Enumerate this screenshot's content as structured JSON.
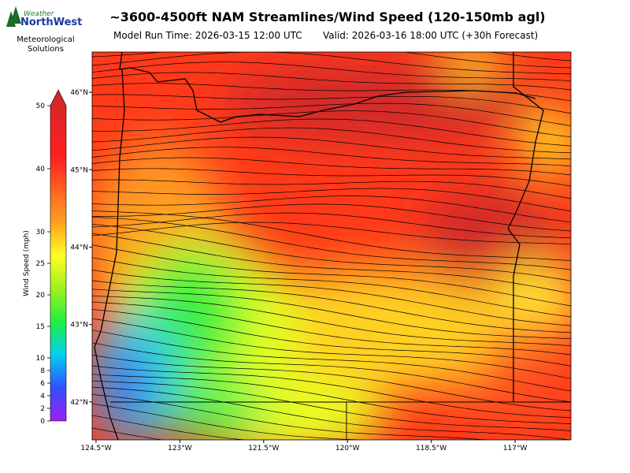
{
  "header": {
    "title": "~3600-4500ft NAM Streamlines/Wind Speed (120-150mb agl)",
    "model_run": "Model Run Time: 2026-03-15 12:00 UTC",
    "valid": "Valid: 2026-03-16 18:00 UTC  (+30h Forecast)"
  },
  "logo": {
    "top": "Weather",
    "name": "NorthWest",
    "line1": "Meteorological",
    "line2": "Solutions"
  },
  "colorbar": {
    "label": "Wind Speed (mph)",
    "lim": [
      0,
      50
    ],
    "ticks": [
      0,
      2,
      4,
      6,
      8,
      10,
      15,
      20,
      25,
      30,
      40,
      50
    ]
  },
  "map": {
    "xlim": [
      -124.57,
      -116.0
    ],
    "ylim": [
      41.51,
      46.52
    ],
    "yticks": [
      {
        "value": 46,
        "label": "46°N"
      },
      {
        "value": 45,
        "label": "45°N"
      },
      {
        "value": 44,
        "label": "44°N"
      },
      {
        "value": 43,
        "label": "43°N"
      },
      {
        "value": 42,
        "label": "42°N"
      }
    ],
    "xticks": [
      {
        "value": -124.5,
        "label": "124.5°W"
      },
      {
        "value": -123,
        "label": "123°W"
      },
      {
        "value": -121.5,
        "label": "121.5°W"
      },
      {
        "value": -120,
        "label": "120°W"
      },
      {
        "value": -118.5,
        "label": "118.5°W"
      },
      {
        "value": -117,
        "label": "117°W"
      }
    ]
  }
}
